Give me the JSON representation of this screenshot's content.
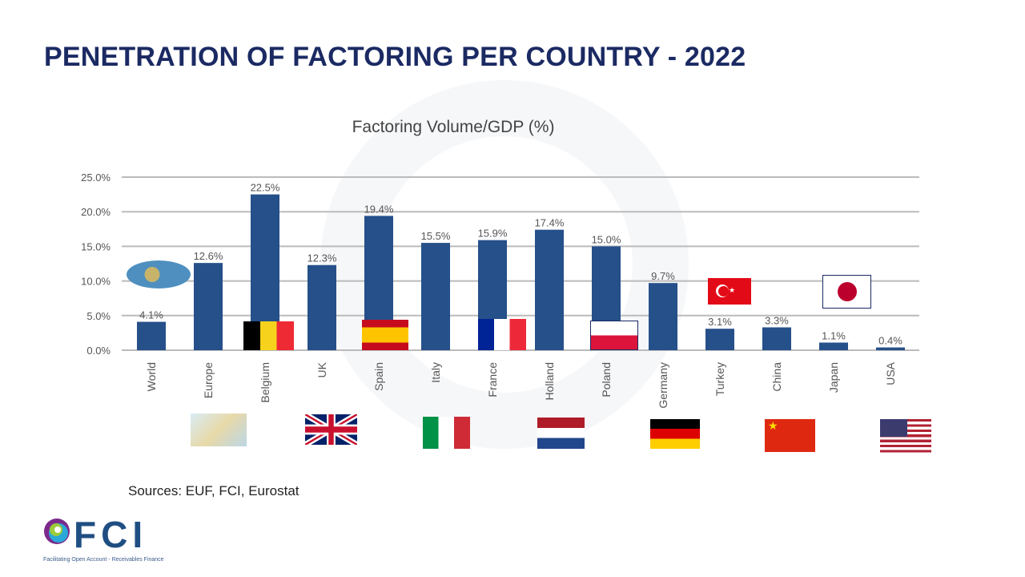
{
  "title": "PENETRATION OF FACTORING PER COUNTRY - 2022",
  "sources": "Sources: EUF, FCI, Eurostat",
  "logo": {
    "text": "FCI",
    "tagline": "Facilitating Open Account - Receivables Finance"
  },
  "chart_data": {
    "type": "bar",
    "title": "Factoring Volume/GDP (%)",
    "categories": [
      "World",
      "Europe",
      "Belgium",
      "UK",
      "Spain",
      "Italy",
      "France",
      "Holland",
      "Poland",
      "Germany",
      "Turkey",
      "China",
      "Japan",
      "USA"
    ],
    "values": [
      4.1,
      12.6,
      22.5,
      12.3,
      19.4,
      15.5,
      15.9,
      17.4,
      15.0,
      9.7,
      3.1,
      3.3,
      1.1,
      0.4
    ],
    "data_labels": [
      "4.1%",
      "12.6%",
      "22.5%",
      "12.3%",
      "19.4%",
      "15.5%",
      "15.9%",
      "17.4%",
      "15.0%",
      "9.7%",
      "3.1%",
      "3.3%",
      "1.1%",
      "0.4%"
    ],
    "yticks": [
      "0.0%",
      "5.0%",
      "10.0%",
      "15.0%",
      "20.0%",
      "25.0%"
    ],
    "ylim": [
      0,
      25
    ],
    "grid": true,
    "bar_color": "#25508a"
  }
}
